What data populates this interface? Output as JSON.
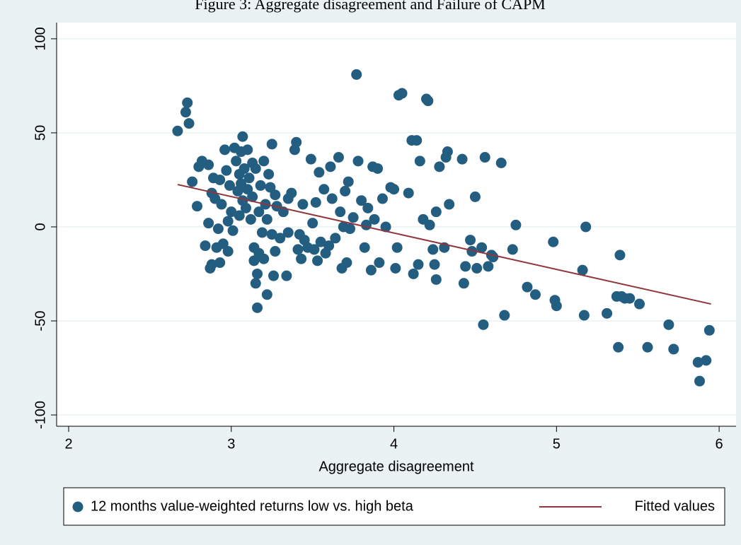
{
  "chart_data": {
    "type": "scatter",
    "title": "Figure 3: Aggregate disagreement and Failure of CAPM",
    "xlabel": "Aggregate disagreement",
    "xlim": [
      1.926,
      6.104
    ],
    "xticks": [
      2,
      3,
      4,
      5,
      6
    ],
    "ylim": [
      -106,
      108.6
    ],
    "yticks": [
      -100,
      -50,
      0,
      50,
      100
    ],
    "grid": true,
    "legend": "bottom",
    "series": [
      {
        "name": "12 months value-weighted returns low vs. high beta",
        "type": "scatter",
        "color": "#235e81",
        "x": [
          2.67,
          2.72,
          2.73,
          2.74,
          2.76,
          2.79,
          2.8,
          2.82,
          2.84,
          2.86,
          2.86,
          2.87,
          2.88,
          2.88,
          2.89,
          2.9,
          2.91,
          2.92,
          2.93,
          2.93,
          2.94,
          2.95,
          2.96,
          2.97,
          2.98,
          2.98,
          2.99,
          3.0,
          3.01,
          3.02,
          3.03,
          3.04,
          3.05,
          3.05,
          3.06,
          3.06,
          3.07,
          3.07,
          3.08,
          3.09,
          3.1,
          3.1,
          3.11,
          3.12,
          3.13,
          3.13,
          3.14,
          3.14,
          3.15,
          3.15,
          3.16,
          3.16,
          3.17,
          3.17,
          3.18,
          3.19,
          3.2,
          3.2,
          3.21,
          3.22,
          3.22,
          3.23,
          3.24,
          3.25,
          3.25,
          3.26,
          3.27,
          3.27,
          3.28,
          3.3,
          3.32,
          3.34,
          3.35,
          3.35,
          3.37,
          3.39,
          3.4,
          3.41,
          3.42,
          3.43,
          3.44,
          3.45,
          3.47,
          3.49,
          3.5,
          3.51,
          3.52,
          3.53,
          3.54,
          3.55,
          3.57,
          3.58,
          3.6,
          3.61,
          3.62,
          3.64,
          3.66,
          3.67,
          3.68,
          3.69,
          3.7,
          3.71,
          3.72,
          3.73,
          3.75,
          3.77,
          3.78,
          3.8,
          3.82,
          3.83,
          3.84,
          3.86,
          3.87,
          3.88,
          3.9,
          3.91,
          3.93,
          3.95,
          3.98,
          4.0,
          4.01,
          4.02,
          4.03,
          4.05,
          4.09,
          4.11,
          4.12,
          4.14,
          4.15,
          4.16,
          4.18,
          4.2,
          4.21,
          4.22,
          4.24,
          4.25,
          4.26,
          4.26,
          4.28,
          4.31,
          4.32,
          4.33,
          4.34,
          4.42,
          4.43,
          4.44,
          4.47,
          4.48,
          4.5,
          4.51,
          4.54,
          4.55,
          4.56,
          4.58,
          4.6,
          4.61,
          4.66,
          4.68,
          4.73,
          4.75,
          4.82,
          4.87,
          4.98,
          4.99,
          5.0,
          5.16,
          5.17,
          5.18,
          5.31,
          5.37,
          5.38,
          5.39,
          5.4,
          5.42,
          5.45,
          5.51,
          5.56,
          5.69,
          5.72,
          5.87,
          5.88,
          5.92,
          5.94
        ],
        "values": [
          51,
          61,
          66,
          55,
          24,
          11,
          32,
          35,
          -10,
          33,
          2,
          -22,
          -20,
          18,
          26,
          15,
          -11,
          -1,
          25,
          -19,
          12,
          -9,
          41,
          30,
          -13,
          3,
          22,
          8,
          -2,
          42,
          35,
          19,
          28,
          6,
          40,
          23,
          48,
          14,
          31,
          10,
          41,
          20,
          26,
          4,
          34,
          16,
          -11,
          -18,
          31,
          -30,
          -43,
          -25,
          -14,
          8,
          22,
          -3,
          35,
          -17,
          12,
          -36,
          4,
          28,
          21,
          -4,
          44,
          -26,
          -13,
          17,
          11,
          -6,
          8,
          -26,
          -3,
          15,
          18,
          41,
          45,
          -12,
          -4,
          -17,
          12,
          -7,
          -11,
          36,
          2,
          -12,
          13,
          -18,
          29,
          -8,
          20,
          -14,
          -10,
          32,
          15,
          -6,
          37,
          8,
          -22,
          0,
          19,
          -19,
          24,
          -1,
          5,
          81,
          35,
          14,
          -11,
          1,
          10,
          -23,
          32,
          4,
          31,
          -19,
          15,
          0,
          21,
          20,
          -22,
          -11,
          70,
          71,
          18,
          46,
          -25,
          46,
          -20,
          35,
          4,
          68,
          67,
          1,
          -12,
          -20,
          -28,
          8,
          32,
          -11,
          37,
          40,
          12,
          36,
          -30,
          -21,
          -7,
          -13,
          16,
          -22,
          -11,
          -52,
          37,
          -21,
          -15,
          -16,
          34,
          -47,
          -12,
          1,
          -32,
          -36,
          -8,
          -39,
          -42,
          -23,
          -47,
          0,
          -46,
          -37,
          -64,
          -15,
          -37,
          -38,
          -38,
          -41,
          -64,
          -52,
          -65,
          -72,
          -82,
          -71,
          -55
        ]
      },
      {
        "name": "Fitted values",
        "type": "line",
        "color": "#90353b",
        "x": [
          2.67,
          5.95
        ],
        "values": [
          22.5,
          -41
        ]
      }
    ]
  }
}
